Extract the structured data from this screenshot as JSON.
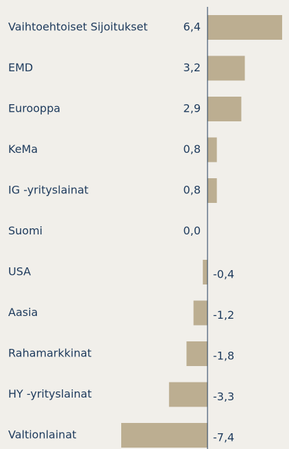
{
  "chart_data": {
    "type": "bar",
    "orientation": "horizontal",
    "categories": [
      "Vaihtoehtoiset Sijoitukset",
      "EMD",
      "Eurooppa",
      "KeMa",
      "IG -yrityslainat",
      "Suomi",
      "USA",
      "Aasia",
      "Rahamarkkinat",
      "HY -yrityslainat",
      "Valtionlainat"
    ],
    "values": [
      6.4,
      3.2,
      2.9,
      0.8,
      0.8,
      0.0,
      -0.4,
      -1.2,
      -1.8,
      -3.3,
      -7.4
    ],
    "value_labels": [
      "6,4",
      "3,2",
      "2,9",
      "0,8",
      "0,8",
      "0,0",
      "-0,4",
      "-1,2",
      "-1,8",
      "-3,3",
      "-7,4"
    ],
    "color": "#bcae91"
  }
}
